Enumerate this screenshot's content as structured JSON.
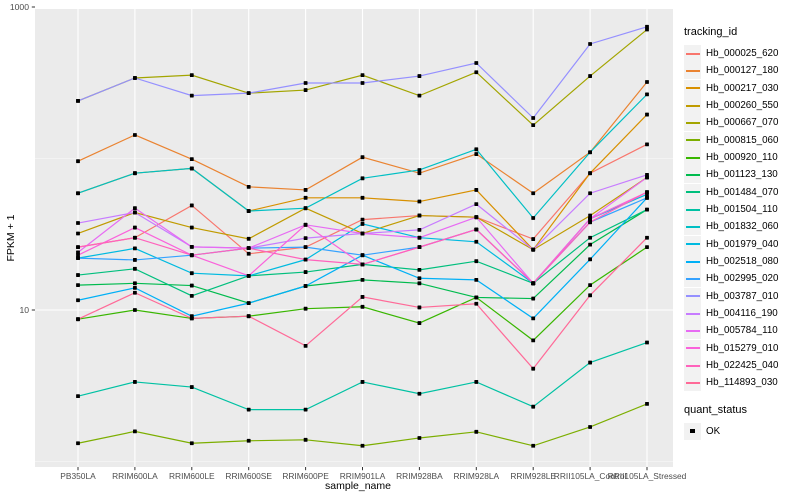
{
  "figure": {
    "background": "#FFFFFF",
    "panel_background": "#EBEBEB",
    "grid_color": "#FFFFFF",
    "tick_label_color": "#4D4D4D",
    "tick_mark_color": "#333333",
    "point_color": "#000000"
  },
  "axes": {
    "y_title": "FPKM + 1",
    "x_title": "sample_name",
    "y_tick_labels": [
      "1000",
      "10"
    ],
    "y_tick_values": [
      1000,
      10
    ],
    "y_minor_values": [
      100,
      1
    ]
  },
  "legend": {
    "tracking_title": "tracking_id",
    "quant_title": "quant_status",
    "quant_items": [
      {
        "label": "OK",
        "marker": "black-square-icon"
      }
    ]
  },
  "chart_data": {
    "type": "line",
    "title": "",
    "xlabel": "sample_name",
    "ylabel": "FPKM + 1",
    "y_scale": "log10",
    "ylim": [
      0.9,
      1050
    ],
    "grid": true,
    "legend_position": "right",
    "point_marker": "black-square",
    "categories": [
      "PB350LA",
      "RRIM600LA",
      "RRIM600LE",
      "RRIM600SE",
      "RRIM600PE",
      "RRIM901LA",
      "RRIM928BA",
      "RRIM928LA",
      "RRIM928LE",
      "RRII105LA_Control",
      "RRII105LA_Stressed"
    ],
    "series": [
      {
        "name": "Hb_000025_620",
        "color": "#F8766D",
        "values": [
          26,
          30,
          49,
          23.5,
          26,
          39.5,
          42,
          41,
          29.4,
          80,
          124
        ]
      },
      {
        "name": "Hb_000127_180",
        "color": "#EA8331",
        "values": [
          96,
          143,
          99,
          65,
          62,
          102,
          80,
          107,
          59,
          110,
          320
        ]
      },
      {
        "name": "Hb_000217_030",
        "color": "#D89000",
        "values": [
          59,
          80,
          86,
          45,
          55,
          55,
          52,
          62,
          25,
          80,
          195
        ]
      },
      {
        "name": "Hb_000260_550",
        "color": "#C09B00",
        "values": [
          32,
          44,
          35,
          29.5,
          47,
          32,
          42,
          41,
          25,
          42,
          75
        ]
      },
      {
        "name": "Hb_000667_070",
        "color": "#A3A500",
        "values": [
          240,
          340,
          355,
          270,
          283,
          355,
          260,
          371,
          166,
          350,
          710
        ]
      },
      {
        "name": "Hb_000815_060",
        "color": "#7CAE00",
        "values": [
          1.32,
          1.58,
          1.32,
          1.37,
          1.39,
          1.27,
          1.43,
          1.57,
          1.27,
          1.69,
          2.4
        ]
      },
      {
        "name": "Hb_000920_110",
        "color": "#39B600",
        "values": [
          8.7,
          10,
          8.8,
          9.1,
          10.2,
          10.5,
          8.2,
          12.1,
          6.3,
          14.6,
          26
        ]
      },
      {
        "name": "Hb_001123_130",
        "color": "#00BB4E",
        "values": [
          14.6,
          15,
          14.5,
          11.1,
          14.4,
          15.8,
          15,
          12.1,
          11.9,
          27,
          46
        ]
      },
      {
        "name": "Hb_001484_070",
        "color": "#00BF7D",
        "values": [
          17,
          18.7,
          12.4,
          16.8,
          17.8,
          20,
          18.4,
          21,
          15,
          30,
          46
        ]
      },
      {
        "name": "Hb_001504_110",
        "color": "#00C1A3",
        "values": [
          2.7,
          3.35,
          3.1,
          2.2,
          2.2,
          3.35,
          2.8,
          3.35,
          2.3,
          4.5,
          6.1
        ]
      },
      {
        "name": "Hb_001832_060",
        "color": "#00BFC4",
        "values": [
          59,
          80,
          86,
          45,
          47,
          74,
          84,
          115,
          40.5,
          110,
          265
        ]
      },
      {
        "name": "Hb_001979_040",
        "color": "#00BAE0",
        "values": [
          22,
          25.5,
          17.5,
          16.8,
          21.5,
          37,
          30,
          28.2,
          15,
          40,
          58
        ]
      },
      {
        "name": "Hb_002518_080",
        "color": "#00B0F6",
        "values": [
          11.6,
          14,
          9.1,
          11.1,
          14.4,
          23,
          16.2,
          15.8,
          8.8,
          21.6,
          55
        ]
      },
      {
        "name": "Hb_002995_020",
        "color": "#35A2FF",
        "values": [
          22,
          21.4,
          23,
          25.6,
          26,
          23,
          26,
          34,
          15,
          38,
          55
        ]
      },
      {
        "name": "Hb_003787_010",
        "color": "#9590FF",
        "values": [
          240,
          340,
          260,
          270,
          315,
          315,
          350,
          427,
          185,
          570,
          740
        ]
      },
      {
        "name": "Hb_004116_190",
        "color": "#C77CFF",
        "values": [
          37.5,
          44,
          26.1,
          25.6,
          29.8,
          32,
          33.8,
          50,
          25,
          59,
          78
        ]
      },
      {
        "name": "Hb_005784_110",
        "color": "#E76BF3",
        "values": [
          24,
          47,
          26.1,
          25.6,
          36.5,
          32,
          30,
          41,
          15,
          40,
          75
        ]
      },
      {
        "name": "Hb_015279_010",
        "color": "#FA62DB",
        "values": [
          23,
          35,
          23,
          16.8,
          36.5,
          20,
          26,
          34,
          15,
          40,
          60
        ]
      },
      {
        "name": "Hb_022425_040",
        "color": "#FF62BC",
        "values": [
          26,
          30,
          23,
          25.6,
          21.5,
          20,
          26,
          34,
          15,
          38,
          60
        ]
      },
      {
        "name": "Hb_114893_030",
        "color": "#FF6A98",
        "values": [
          8.7,
          13,
          8.8,
          9.1,
          5.8,
          12.2,
          10.4,
          11,
          4.1,
          12.5,
          30
        ]
      }
    ]
  }
}
